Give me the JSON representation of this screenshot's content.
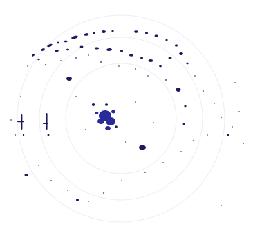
{
  "image": {
    "description_free": true,
    "colors": {
      "background": "#ffffff",
      "speckle": "#1b1b5e",
      "speckle_soft": "#3a3a7a",
      "blob": "#2a2a9a",
      "ring": "#e9e9f1"
    }
  }
}
